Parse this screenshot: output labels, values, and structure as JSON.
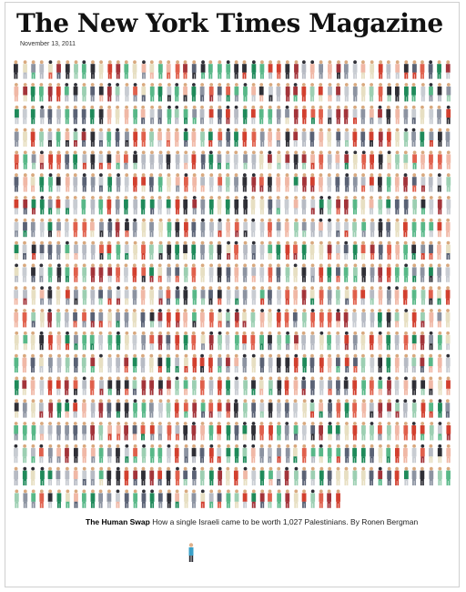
{
  "cover": {
    "masthead": "The New York Times Magazine",
    "date": "November 13, 2011",
    "headline": "The Human Swap",
    "dek": "How a single Israeli came to be worth 1,027 Palestinians. By Ronen Bergman"
  },
  "illustration": {
    "crowd_count": 1027,
    "lone_figure_count": 1,
    "palette": [
      "#d2402f",
      "#e0604c",
      "#1f8a5a",
      "#58b888",
      "#9ccfb2",
      "#f0b8a6",
      "#e7dfc2",
      "#5a6275",
      "#8c93a1",
      "#b7bbc4",
      "#c8ccd2",
      "#2f2f36",
      "#a3343a"
    ],
    "lone_figure_color": "#3aa0c8"
  }
}
